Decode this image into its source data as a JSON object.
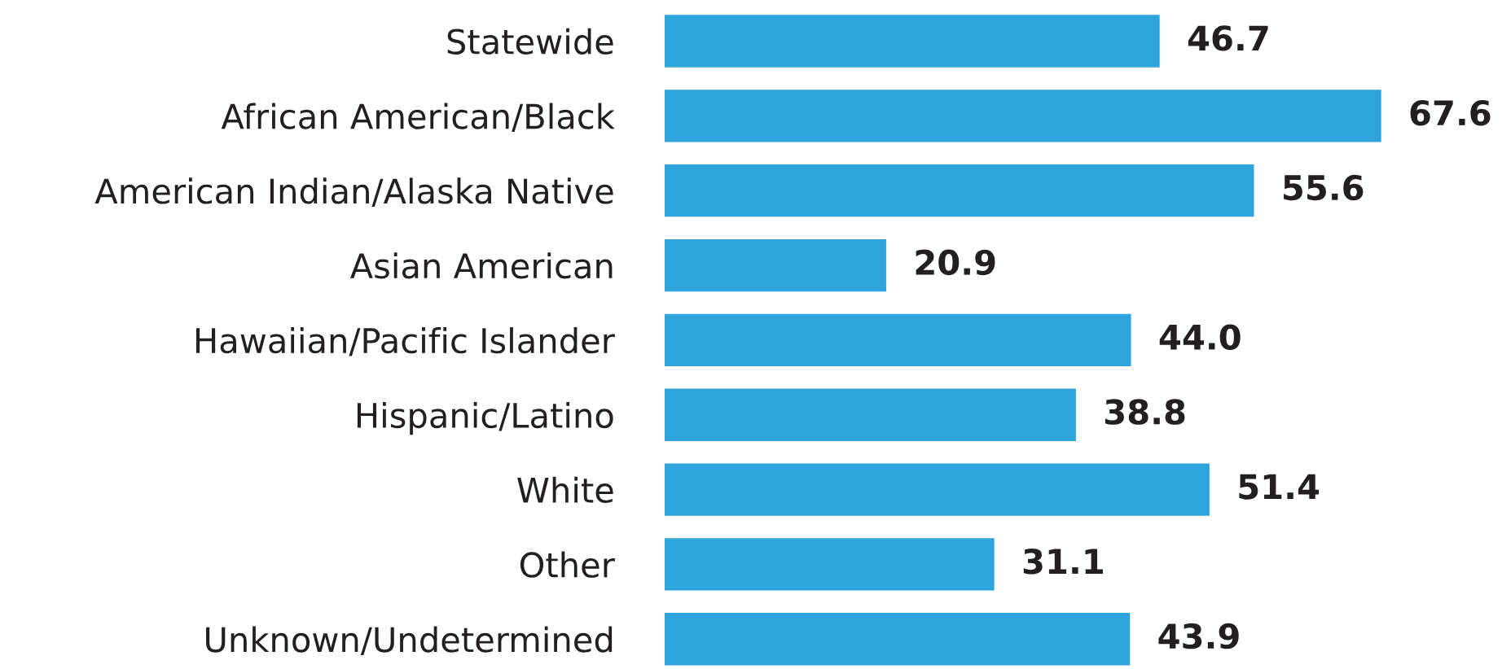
{
  "chart_data": {
    "type": "bar",
    "orientation": "horizontal",
    "categories": [
      "Statewide",
      "African American/Black",
      "American Indian/Alaska Native",
      "Asian American",
      "Hawaiian/Pacific Islander",
      "Hispanic/Latino",
      "White",
      "Other",
      "Unknown/Undetermined"
    ],
    "values": [
      46.7,
      67.6,
      55.6,
      20.9,
      44.0,
      38.8,
      51.4,
      31.1,
      43.9
    ],
    "value_labels": [
      "46.7",
      "67.6",
      "55.6",
      "20.9",
      "44.0",
      "38.8",
      "51.4",
      "31.1",
      "43.9"
    ],
    "color": "#2ea3dc"
  }
}
